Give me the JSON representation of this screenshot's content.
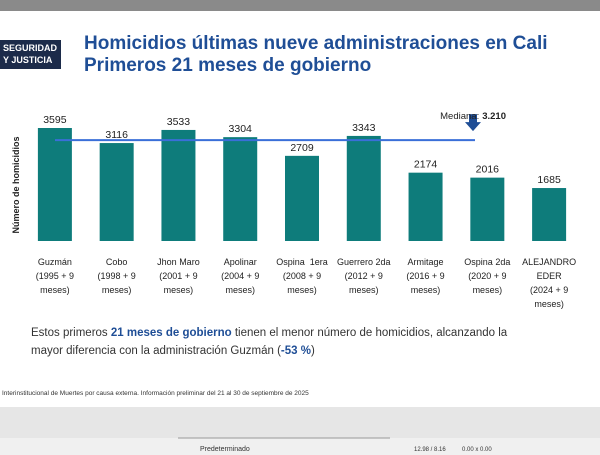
{
  "header": {
    "badge": [
      "SEGURIDAD",
      "Y JUSTICIA"
    ],
    "title": [
      "Homicidios últimas nueve administraciones en Cali",
      "Primeros 21 meses de gobierno"
    ]
  },
  "chart_data": {
    "type": "bar",
    "y_label": "Número de homicidios",
    "categories": [
      [
        "Guzmán",
        "(1995 + 9",
        "meses)"
      ],
      [
        "Cobo",
        "(1998 + 9",
        "meses)"
      ],
      [
        "Jhon Maro",
        "(2001 + 9",
        "meses)"
      ],
      [
        "Apolinar",
        "(2004 + 9",
        "meses)"
      ],
      [
        "Ospina  1era",
        "(2008 + 9",
        "meses)"
      ],
      [
        "Guerrero 2da",
        "(2012 + 9",
        "meses)"
      ],
      [
        "Armitage",
        "(2016 + 9",
        "meses)"
      ],
      [
        "Ospina 2da",
        "(2020 + 9",
        "meses)"
      ],
      [
        "ALEJANDRO",
        "EDER",
        "(2024 + 9",
        "meses)"
      ]
    ],
    "values": [
      3595,
      3116,
      3533,
      3304,
      2709,
      3343,
      2174,
      2016,
      1685
    ],
    "color": "#0e7c7b",
    "median": {
      "label": "Mediana:",
      "value": 3210,
      "value_label": "3.210",
      "color": "#3a6fd8"
    }
  },
  "summary": [
    "Estos primeros ",
    "21 meses de gobierno",
    " tienen el menor número de homicidios, alcanzando la",
    "mayor diferencia con la administración Guzmán (",
    "-53 %",
    ")"
  ],
  "source": "Interinstitucional de Muertes por causa externa. Información preliminar del 21 al 30 de septiembre de 2025",
  "status_bar": [
    "Predeterminado",
    "12.98 / 8.16",
    "0.00 x 0.00"
  ]
}
